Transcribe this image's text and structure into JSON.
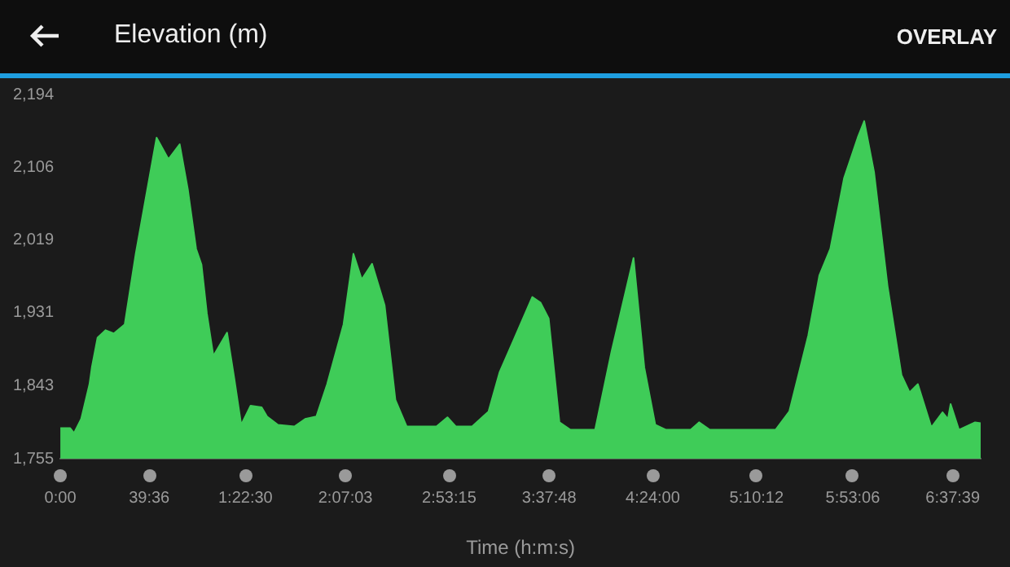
{
  "chart_data": {
    "type": "area",
    "title": "Elevation (m)",
    "xlabel": "Time (h:m:s)",
    "annotations": [
      "OVERLAY"
    ],
    "xlim": [
      0,
      410.1
    ],
    "ylim": [
      1755,
      2194
    ],
    "xticks": [
      {
        "value": 0,
        "label": "0:00"
      },
      {
        "value": 39.6,
        "label": "39:36"
      },
      {
        "value": 82.5,
        "label": "1:22:30"
      },
      {
        "value": 127.05,
        "label": "2:07:03"
      },
      {
        "value": 173.25,
        "label": "2:53:15"
      },
      {
        "value": 217.8,
        "label": "3:37:48"
      },
      {
        "value": 264,
        "label": "4:24:00"
      },
      {
        "value": 310.2,
        "label": "5:10:12"
      },
      {
        "value": 353.1,
        "label": "5:53:06"
      },
      {
        "value": 397.65,
        "label": "6:37:39"
      }
    ],
    "yticks": [
      {
        "value": 1755,
        "label": "1,755"
      },
      {
        "value": 1843,
        "label": "1,843"
      },
      {
        "value": 1931,
        "label": "1,931"
      },
      {
        "value": 2019,
        "label": "2,019"
      },
      {
        "value": 2106,
        "label": "2,106"
      },
      {
        "value": 2194,
        "label": "2,194"
      }
    ],
    "grid": false,
    "legend": false,
    "x": [
      0,
      4.4,
      6.1,
      9.3,
      13,
      14.1,
      16.6,
      20.2,
      23.9,
      28.7,
      33.6,
      42.9,
      48.2,
      53.2,
      56.8,
      60.5,
      62.9,
      65.3,
      68.2,
      74.3,
      77.5,
      80.6,
      84.8,
      89.7,
      92.1,
      97,
      104.3,
      109.1,
      114.1,
      118.9,
      126.2,
      130.6,
      134.3,
      138.9,
      144.5,
      149.3,
      154.3,
      167.6,
      172.5,
      176.2,
      183.5,
      190.8,
      195.7,
      201.8,
      210.3,
      214,
      217.6,
      222.4,
      227.3,
      238.3,
      245.6,
      255.4,
      260.2,
      265.1,
      269.9,
      280.9,
      284.6,
      289.4,
      318.7,
      324.8,
      333.3,
      338.2,
      343.1,
      349.2,
      355.3,
      358.2,
      362.6,
      368.6,
      374.8,
      378.4,
      382.1,
      388.1,
      393.1,
      395.5,
      396.7,
      400.4,
      407.6,
      410.1
    ],
    "series": [
      {
        "color": "#3fcc58",
        "values": [
          1792,
          1792,
          1786,
          1803,
          1845,
          1866,
          1901,
          1910,
          1906,
          1917,
          2002,
          2142,
          2116,
          2134,
          2080,
          2008,
          1989,
          1930,
          1879,
          1907,
          1852,
          1796,
          1819,
          1817,
          1806,
          1796,
          1794,
          1803,
          1806,
          1845,
          1917,
          2002,
          1971,
          1990,
          1940,
          1826,
          1794,
          1794,
          1805,
          1794,
          1794,
          1812,
          1859,
          1897,
          1950,
          1943,
          1924,
          1799,
          1790,
          1790,
          1884,
          1997,
          1865,
          1796,
          1790,
          1790,
          1799,
          1790,
          1790,
          1812,
          1904,
          1976,
          2008,
          2093,
          2142,
          2162,
          2100,
          1963,
          1856,
          1835,
          1845,
          1793,
          1811,
          1803,
          1821,
          1790,
          1799,
          1798
        ]
      }
    ]
  }
}
